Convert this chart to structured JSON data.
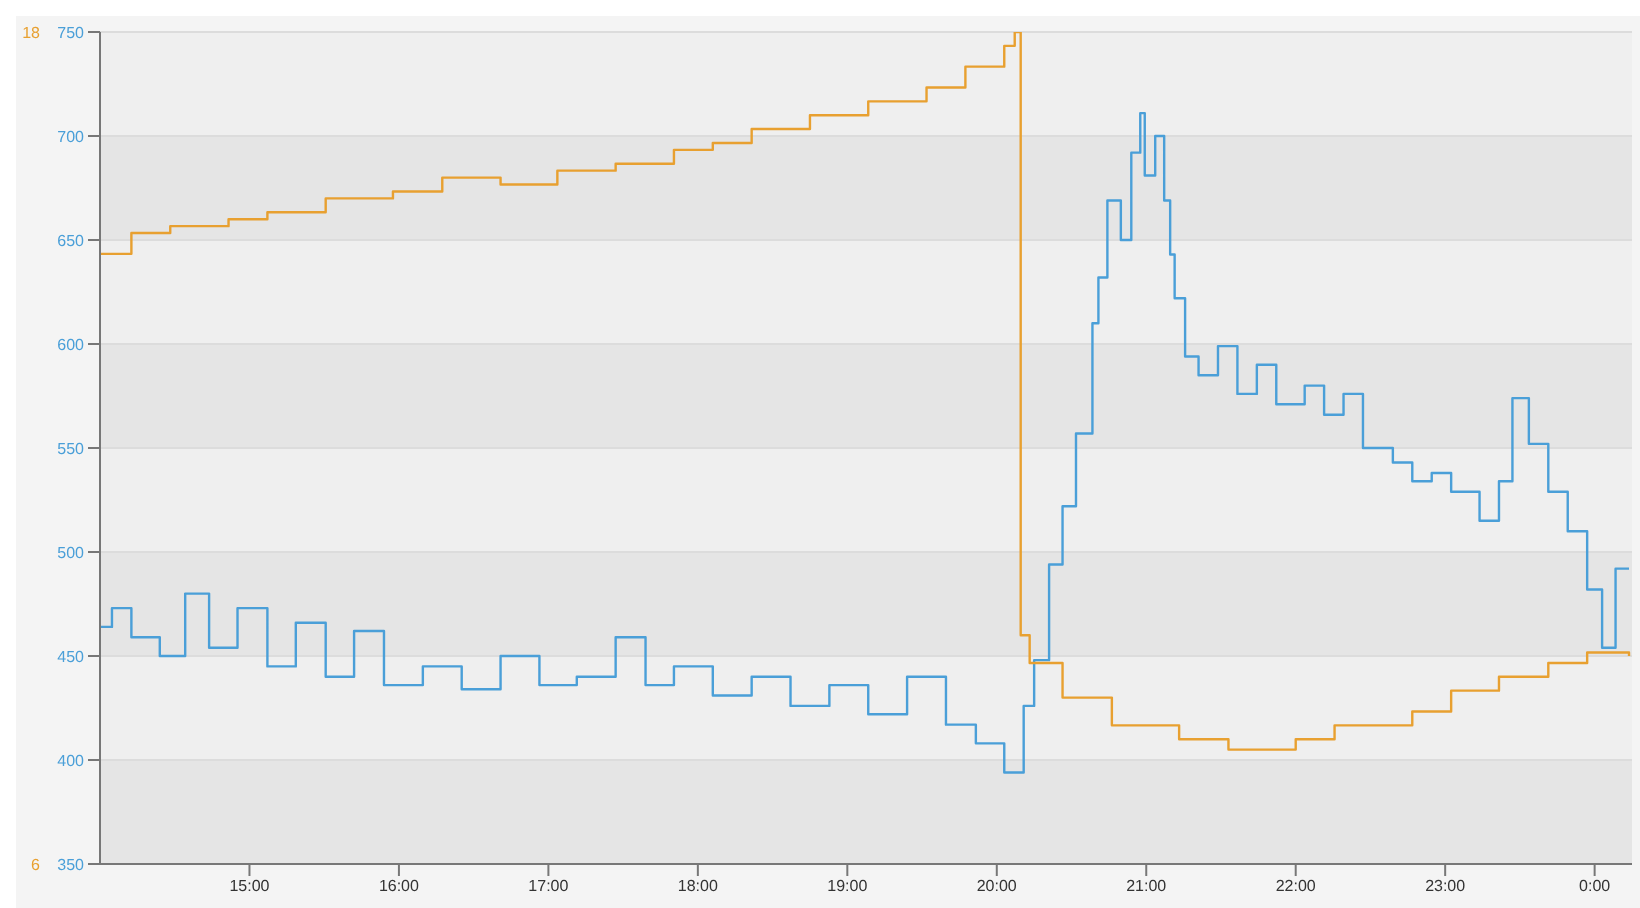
{
  "chart_data": {
    "type": "step",
    "xlim": [
      14,
      24.25
    ],
    "xticks": [
      {
        "value": 15,
        "label": "15:00"
      },
      {
        "value": 16,
        "label": "16:00"
      },
      {
        "value": 17,
        "label": "17:00"
      },
      {
        "value": 18,
        "label": "18:00"
      },
      {
        "value": 19,
        "label": "19:00"
      },
      {
        "value": 20,
        "label": "20:00"
      },
      {
        "value": 21,
        "label": "21:00"
      },
      {
        "value": 22,
        "label": "22:00"
      },
      {
        "value": 23,
        "label": "23:00"
      },
      {
        "value": 24,
        "label": "0:00"
      }
    ],
    "ylim": [
      350,
      750
    ],
    "yticks": [
      350,
      400,
      450,
      500,
      550,
      600,
      650,
      700,
      750
    ],
    "y2lim": [
      6,
      18
    ],
    "y2ticks": [
      6,
      18
    ],
    "grid": "y",
    "series": [
      {
        "color": "#4a9fd8",
        "x": [
          14.0,
          14.08,
          14.21,
          14.4,
          14.57,
          14.73,
          14.92,
          15.12,
          15.31,
          15.51,
          15.7,
          15.9,
          16.16,
          16.42,
          16.68,
          16.94,
          17.19,
          17.45,
          17.65,
          17.84,
          18.1,
          18.36,
          18.62,
          18.88,
          19.14,
          19.4,
          19.66,
          19.86,
          20.05,
          20.18,
          20.25,
          20.35,
          20.44,
          20.53,
          20.64,
          20.68,
          20.74,
          20.83,
          20.9,
          20.96,
          20.99,
          21.06,
          21.12,
          21.16,
          21.19,
          21.26,
          21.35,
          21.48,
          21.61,
          21.74,
          21.87,
          22.06,
          22.19,
          22.32,
          22.45,
          22.65,
          22.78,
          22.91,
          23.04,
          23.23,
          23.36,
          23.45,
          23.56,
          23.69,
          23.82,
          23.95,
          24.05,
          24.14,
          24.23
        ],
        "values": [
          464,
          473,
          459,
          450,
          480,
          454,
          473,
          445,
          466,
          440,
          462,
          436,
          445,
          434,
          450,
          436,
          440,
          459,
          436,
          445,
          431,
          440,
          426,
          436,
          422,
          440,
          417,
          408,
          394,
          426,
          448,
          494,
          522,
          557,
          610,
          632,
          669,
          650,
          692,
          711,
          681,
          700,
          669,
          643,
          622,
          594,
          585,
          599,
          576,
          590,
          571,
          580,
          566,
          576,
          550,
          543,
          534,
          538,
          529,
          515,
          534,
          574,
          552,
          529,
          510,
          482,
          454,
          492,
          492
        ]
      },
      {
        "color": "#e8a030",
        "axis": "y2",
        "x": [
          14.0,
          14.21,
          14.47,
          14.86,
          15.12,
          15.51,
          15.96,
          16.29,
          16.68,
          17.06,
          17.45,
          17.84,
          18.1,
          18.36,
          18.75,
          19.14,
          19.53,
          19.79,
          20.05,
          20.12,
          20.16,
          20.22,
          20.44,
          20.77,
          21.22,
          21.55,
          22.0,
          22.26,
          22.78,
          23.04,
          23.36,
          23.69,
          23.95,
          24.23
        ],
        "values": [
          14.8,
          15.1,
          15.2,
          15.3,
          15.4,
          15.6,
          15.7,
          15.9,
          15.8,
          16.0,
          16.1,
          16.3,
          16.4,
          16.6,
          16.8,
          17.0,
          17.2,
          17.5,
          17.8,
          18.0,
          9.3,
          8.9,
          8.4,
          8.0,
          7.8,
          7.65,
          7.8,
          8.0,
          8.2,
          8.5,
          8.7,
          8.9,
          9.05,
          9.0
        ]
      }
    ]
  }
}
